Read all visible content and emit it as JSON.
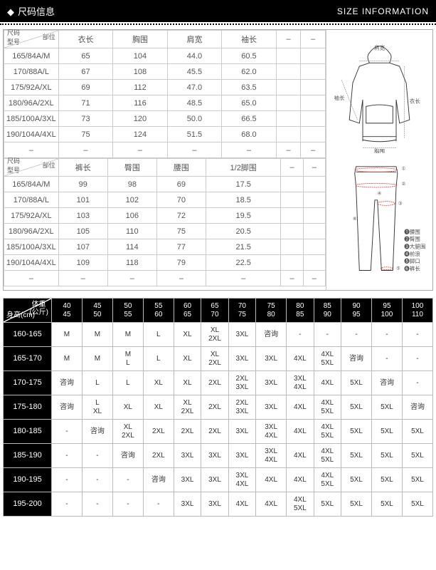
{
  "header": {
    "title_cn": "尺码信息",
    "title_en": "SIZE INFORMATION"
  },
  "table_top": {
    "corner_top": "部位",
    "corner_bot": "尺码\n型号",
    "headers": [
      "衣长",
      "胸围",
      "肩宽",
      "袖长",
      "–",
      "–"
    ],
    "rows": [
      [
        "165/84A/M",
        "65",
        "104",
        "44.0",
        "60.5",
        "",
        ""
      ],
      [
        "170/88A/L",
        "67",
        "108",
        "45.5",
        "62.0",
        "",
        ""
      ],
      [
        "175/92A/XL",
        "69",
        "112",
        "47.0",
        "63.5",
        "",
        ""
      ],
      [
        "180/96A/2XL",
        "71",
        "116",
        "48.5",
        "65.0",
        "",
        ""
      ],
      [
        "185/100A/3XL",
        "73",
        "120",
        "50.0",
        "66.5",
        "",
        ""
      ],
      [
        "190/104A/4XL",
        "75",
        "124",
        "51.5",
        "68.0",
        "",
        ""
      ],
      [
        "–",
        "–",
        "–",
        "–",
        "–",
        "–",
        "–"
      ]
    ]
  },
  "table_pants": {
    "corner_top": "部位",
    "corner_bot": "尺码\n型号",
    "headers": [
      "裤长",
      "臀围",
      "腰围",
      "1/2脚围",
      "–",
      "–"
    ],
    "rows": [
      [
        "165/84A/M",
        "99",
        "98",
        "69",
        "17.5",
        "",
        ""
      ],
      [
        "170/88A/L",
        "101",
        "102",
        "70",
        "18.5",
        "",
        ""
      ],
      [
        "175/92A/XL",
        "103",
        "106",
        "72",
        "19.5",
        "",
        ""
      ],
      [
        "180/96A/2XL",
        "105",
        "110",
        "75",
        "20.5",
        "",
        ""
      ],
      [
        "185/100A/3XL",
        "107",
        "114",
        "77",
        "21.5",
        "",
        ""
      ],
      [
        "190/104A/4XL",
        "109",
        "118",
        "79",
        "22.5",
        "",
        ""
      ],
      [
        "–",
        "–",
        "–",
        "–",
        "–",
        "–",
        "–"
      ]
    ]
  },
  "diagram_labels": {
    "shoulder": "肩宽",
    "sleeve": "袖长",
    "length": "衣长",
    "chest": "胸围",
    "pants_legend": [
      "❶腰围",
      "❷臀围",
      "❸大腿围",
      "❹前浪",
      "❺脚口",
      "❻裤长"
    ]
  },
  "rec": {
    "corner_top": "体重\n(公斤)",
    "corner_bot": "身高(cm)",
    "weights_top": [
      "40",
      "45",
      "50",
      "55",
      "60",
      "65",
      "70",
      "75",
      "80",
      "85",
      "90",
      "95",
      "100"
    ],
    "weights_bot": [
      "45",
      "50",
      "55",
      "60",
      "65",
      "70",
      "75",
      "80",
      "85",
      "90",
      "95",
      "100",
      "110"
    ],
    "heights": [
      "160-165",
      "165-170",
      "170-175",
      "175-180",
      "180-185",
      "185-190",
      "190-195",
      "195-200"
    ],
    "cells": [
      [
        "M",
        "M",
        "M",
        "L",
        "XL",
        "XL\n2XL",
        "3XL",
        "咨询",
        "-",
        "-",
        "-",
        "-",
        "-"
      ],
      [
        "M",
        "M",
        "M\nL",
        "L",
        "XL",
        "XL\n2XL",
        "3XL",
        "3XL",
        "4XL",
        "4XL\n5XL",
        "咨询",
        "-",
        "-"
      ],
      [
        "咨询",
        "L",
        "L",
        "XL",
        "XL",
        "2XL",
        "2XL\n3XL",
        "3XL",
        "3XL\n4XL",
        "4XL",
        "5XL",
        "咨询",
        "-"
      ],
      [
        "咨询",
        "L\nXL",
        "XL",
        "XL",
        "XL\n2XL",
        "2XL",
        "2XL\n3XL",
        "3XL",
        "4XL",
        "4XL\n5XL",
        "5XL",
        "5XL",
        "咨询"
      ],
      [
        "-",
        "咨询",
        "XL\n2XL",
        "2XL",
        "2XL",
        "2XL",
        "3XL",
        "3XL\n4XL",
        "4XL",
        "4XL\n5XL",
        "5XL",
        "5XL",
        "5XL"
      ],
      [
        "-",
        "-",
        "咨询",
        "2XL",
        "3XL",
        "3XL",
        "3XL",
        "3XL\n4XL",
        "4XL",
        "4XL\n5XL",
        "5XL",
        "5XL",
        "5XL"
      ],
      [
        "-",
        "-",
        "-",
        "咨询",
        "3XL",
        "3XL",
        "3XL\n4XL",
        "4XL",
        "4XL",
        "4XL\n5XL",
        "5XL",
        "5XL",
        "5XL"
      ],
      [
        "-",
        "-",
        "-",
        "-",
        "3XL",
        "3XL",
        "4XL",
        "4XL",
        "4XL\n5XL",
        "5XL",
        "5XL",
        "5XL",
        "5XL"
      ]
    ]
  },
  "style": {
    "black": "#000000",
    "grey_border": "#cccccc",
    "text_grey": "#555555"
  }
}
